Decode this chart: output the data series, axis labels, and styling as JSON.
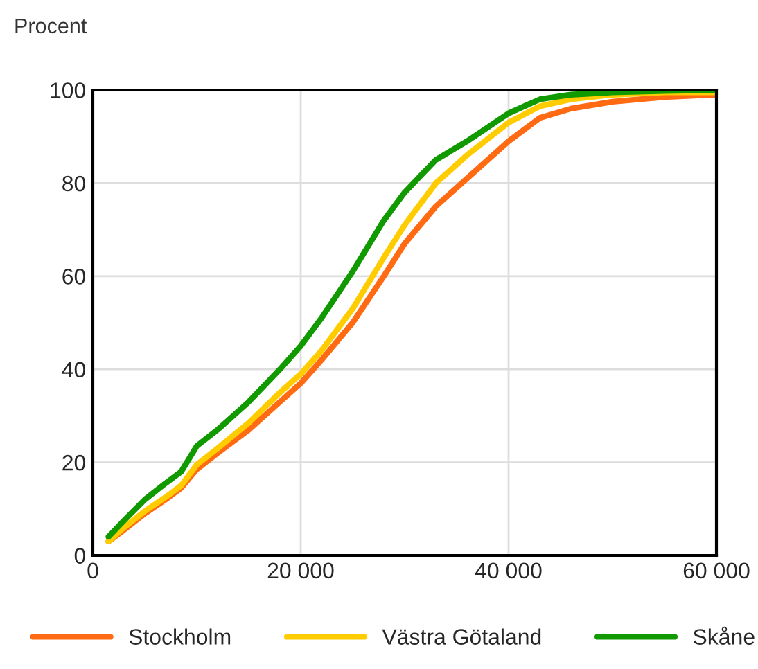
{
  "chart_data": {
    "type": "line",
    "ylabel": "Procent",
    "x": [
      1500,
      3000,
      5000,
      7000,
      8500,
      10000,
      12000,
      15000,
      18000,
      20000,
      22000,
      25000,
      28000,
      30000,
      33000,
      36000,
      40000,
      43000,
      46000,
      50000,
      55000,
      60000
    ],
    "series": [
      {
        "name": "Stockholm",
        "color": "#ff6a13",
        "values": [
          3,
          5.5,
          9,
          12,
          14.5,
          18.5,
          22,
          27,
          33,
          37,
          42,
          50,
          60,
          67,
          75,
          81,
          89,
          94,
          96,
          97.5,
          98.5,
          99
        ]
      },
      {
        "name": "Västra Götaland",
        "color": "#ffcc00",
        "values": [
          3,
          6,
          9.5,
          12.5,
          15,
          19.5,
          23,
          28.5,
          35,
          39,
          44,
          53,
          64,
          71,
          80,
          86,
          93,
          96.5,
          98,
          99,
          99.5,
          99.5
        ]
      },
      {
        "name": "Skåne",
        "color": "#109a00",
        "values": [
          4,
          7.5,
          12,
          15.5,
          18,
          23.5,
          27,
          33,
          40,
          45,
          51,
          61,
          72,
          78,
          85,
          89,
          95,
          98,
          99,
          99.5,
          99.8,
          100
        ]
      }
    ],
    "xlim": [
      0,
      60000
    ],
    "xticks": [
      0,
      {
        "value": 20000,
        "label": "20 000"
      },
      {
        "value": 40000,
        "label": "40 000"
      },
      {
        "value": 60000,
        "label": "60 000"
      }
    ],
    "ylim": [
      0,
      100
    ],
    "yticks": [
      0,
      20,
      40,
      60,
      80,
      100
    ],
    "grid": true,
    "legend": "bottom",
    "line_style": "solid",
    "marker": "none"
  }
}
